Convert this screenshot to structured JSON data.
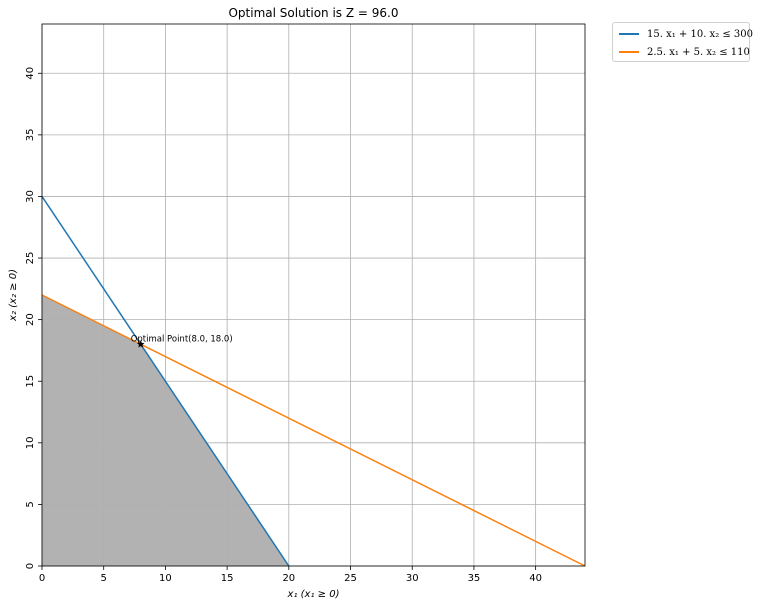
{
  "chart_data": {
    "type": "line",
    "title": "Optimal Solution is Z = 96.0",
    "xlabel": "x₁ (x₁ ≥ 0)",
    "ylabel": "x₂ (x₂ ≥ 0)",
    "xlim": [
      0,
      44
    ],
    "ylim": [
      0,
      44
    ],
    "xticks": [
      0,
      5,
      10,
      15,
      20,
      25,
      30,
      35,
      40
    ],
    "yticks": [
      0,
      5,
      10,
      15,
      20,
      25,
      30,
      35,
      40
    ],
    "grid": true,
    "legend_position": "outside-top-right",
    "series": [
      {
        "name": "15. x₁ + 10. x₂ ≤ 300",
        "color": "#1f77b4",
        "x": [
          0,
          20
        ],
        "y": [
          30,
          0
        ]
      },
      {
        "name": "2.5. x₁ + 5. x₂ ≤ 110",
        "color": "#ff7f0e",
        "x": [
          0,
          44
        ],
        "y": [
          22,
          0
        ]
      }
    ],
    "feasible_region": {
      "color": "#b2b2b2",
      "vertices": [
        [
          0,
          0
        ],
        [
          0,
          22
        ],
        [
          8,
          18
        ],
        [
          20,
          0
        ]
      ]
    },
    "optimal_point": {
      "x": 8.0,
      "y": 18.0,
      "label": "Optimal Point(8.0, 18.0)"
    }
  }
}
